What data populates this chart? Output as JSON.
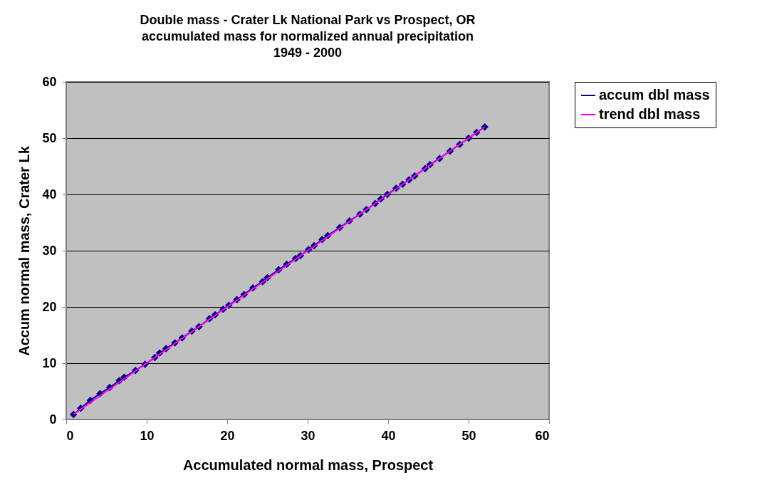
{
  "chart_data": {
    "type": "line",
    "title": "Double mass - Crater Lk National Park vs Prospect, OR\naccumulated mass for normalized annual precipitation\n1949 - 2000",
    "xlabel": "Accumulated normal mass, Prospect",
    "ylabel": "Accum normal mass, Crater Lk",
    "xlim": [
      0,
      60
    ],
    "ylim": [
      0,
      60
    ],
    "xticks": [
      0,
      10,
      20,
      30,
      40,
      50,
      60
    ],
    "yticks": [
      0,
      10,
      20,
      30,
      40,
      50,
      60
    ],
    "grid": "y",
    "legend": "right",
    "series": [
      {
        "name": "accum dbl mass",
        "color": "#000080",
        "marker": "diamond",
        "x": [
          0.9,
          1.8,
          3.0,
          4.2,
          5.4,
          6.6,
          7.2,
          8.6,
          9.8,
          11.0,
          11.6,
          12.4,
          13.5,
          14.4,
          15.6,
          16.5,
          17.8,
          18.5,
          19.5,
          20.2,
          21.2,
          22.1,
          23.2,
          24.4,
          25.0,
          26.4,
          27.4,
          28.5,
          29.1,
          30.1,
          30.8,
          31.8,
          32.5,
          34.0,
          35.2,
          36.5,
          37.3,
          38.4,
          39.1,
          39.9,
          41.0,
          41.8,
          42.6,
          43.3,
          44.6,
          45.2,
          46.4,
          47.7,
          48.9,
          50.0,
          51.0,
          52.0
        ],
        "values": [
          0.9,
          2.0,
          3.4,
          4.6,
          5.7,
          6.9,
          7.5,
          8.7,
          9.8,
          11.0,
          11.8,
          12.6,
          13.6,
          14.5,
          15.7,
          16.5,
          17.9,
          18.6,
          19.6,
          20.3,
          21.3,
          22.2,
          23.4,
          24.5,
          25.2,
          26.6,
          27.6,
          28.6,
          29.1,
          30.2,
          30.9,
          32.0,
          32.7,
          34.1,
          35.3,
          36.5,
          37.3,
          38.4,
          39.2,
          40.0,
          41.1,
          41.8,
          42.6,
          43.3,
          44.6,
          45.3,
          46.4,
          47.7,
          48.9,
          50.0,
          51.0,
          52.0
        ]
      },
      {
        "name": "trend dbl mass",
        "color": "#ff00ff",
        "marker": "none",
        "x": [
          0.9,
          52.0
        ],
        "values": [
          0.9,
          52.0
        ]
      }
    ]
  }
}
